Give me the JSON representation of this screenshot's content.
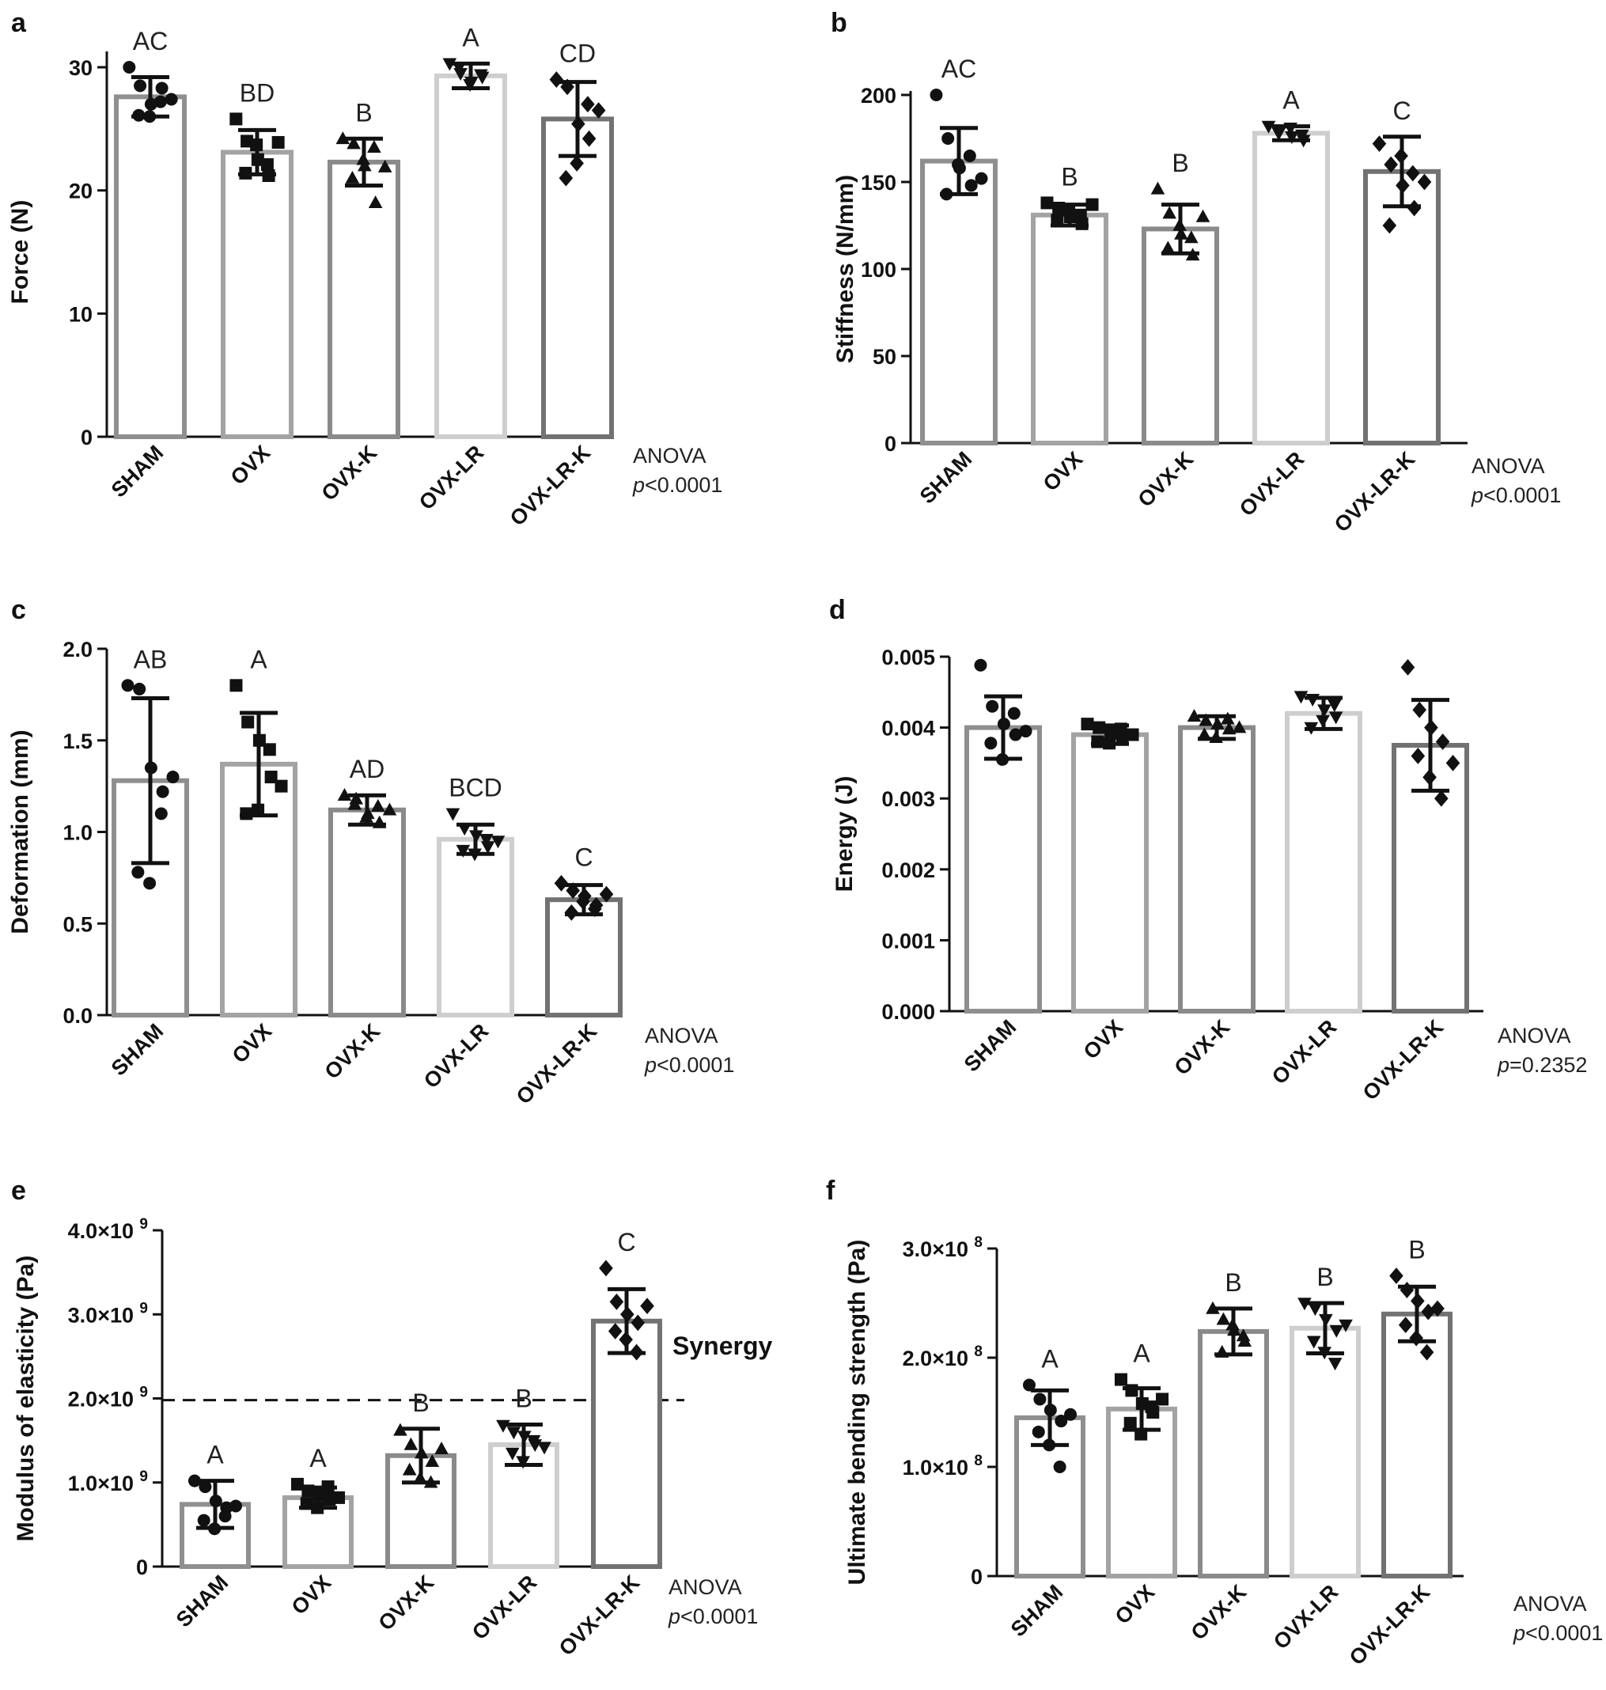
{
  "chart_data": [
    {
      "panel": "a",
      "type": "bar",
      "ylabel": "Force (N)",
      "categories": [
        "SHAM",
        "OVX",
        "OVX-K",
        "OVX-LR",
        "OVX-LR-K"
      ],
      "values": [
        27.6,
        23.1,
        22.3,
        29.3,
        25.8
      ],
      "sd": [
        1.6,
        1.8,
        1.9,
        1.0,
        3.0
      ],
      "points": [
        [
          30.0,
          28.5,
          27.0,
          28.3,
          26.1,
          26.0,
          27.2,
          27.4
        ],
        [
          25.8,
          24.0,
          22.5,
          21.2,
          21.4,
          23.7,
          22.1,
          23.9
        ],
        [
          24.2,
          23.8,
          22.0,
          19.0,
          21.0,
          22.5,
          23.5,
          21.9
        ],
        [
          30.3,
          29.5,
          28.8,
          29.2,
          30.0,
          28.6,
          29.4
        ],
        [
          29.0,
          28.4,
          25.4,
          24.2,
          21.0,
          22.2,
          27.0,
          26.5
        ]
      ],
      "markers": [
        "circle",
        "square",
        "triangle-up",
        "triangle-down",
        "diamond"
      ],
      "letters": [
        "AC",
        "BD",
        "B",
        "A",
        "CD"
      ],
      "yticks": [
        "0",
        "10",
        "20",
        "30"
      ],
      "ytick_values": [
        0,
        10,
        20,
        30
      ],
      "ylim": [
        0,
        32
      ],
      "annotation": [
        "ANOVA",
        "p<0.0001"
      ]
    },
    {
      "panel": "b",
      "type": "bar",
      "ylabel": "Stiffness (N/mm)",
      "categories": [
        "SHAM",
        "OVX",
        "OVX-K",
        "OVX-LR",
        "OVX-LR-K"
      ],
      "values": [
        162,
        131,
        123,
        178,
        156
      ],
      "sd": [
        19,
        6,
        14,
        4,
        20
      ],
      "points": [
        [
          200,
          175,
          158,
          148,
          143,
          160,
          165,
          152
        ],
        [
          138,
          135,
          130,
          126,
          128,
          134,
          131,
          137
        ],
        [
          146,
          132,
          120,
          108,
          112,
          125,
          118,
          130
        ],
        [
          182,
          180,
          176,
          174,
          178,
          181,
          177
        ],
        [
          172,
          160,
          148,
          135,
          125,
          165,
          155,
          150
        ]
      ],
      "markers": [
        "circle",
        "square",
        "triangle-up",
        "triangle-down",
        "diamond"
      ],
      "letters": [
        "AC",
        "B",
        "B",
        "A",
        "C"
      ],
      "yticks": [
        "0",
        "50",
        "100",
        "150",
        "200"
      ],
      "ytick_values": [
        0,
        50,
        100,
        150,
        200
      ],
      "ylim": [
        0,
        200
      ],
      "annotation": [
        "ANOVA",
        "p<0.0001"
      ]
    },
    {
      "panel": "c",
      "type": "bar",
      "ylabel": "Deformation (mm)",
      "categories": [
        "SHAM",
        "OVX",
        "OVX-K",
        "OVX-LR",
        "OVX-LR-K"
      ],
      "values": [
        1.28,
        1.37,
        1.12,
        0.96,
        0.63
      ],
      "sd": [
        0.45,
        0.28,
        0.08,
        0.08,
        0.08
      ],
      "points": [
        [
          1.8,
          1.78,
          1.35,
          1.22,
          0.78,
          0.72,
          1.1,
          1.3
        ],
        [
          1.8,
          1.6,
          1.5,
          1.3,
          1.1,
          1.12,
          1.45,
          1.25
        ],
        [
          1.2,
          1.18,
          1.1,
          1.05,
          1.15,
          1.08,
          1.14,
          1.12
        ],
        [
          1.1,
          1.02,
          0.98,
          0.92,
          0.9,
          0.88,
          0.96,
          0.95
        ],
        [
          0.72,
          0.68,
          0.65,
          0.6,
          0.56,
          0.62,
          0.58,
          0.66
        ]
      ],
      "markers": [
        "circle",
        "square",
        "triangle-up",
        "triangle-down",
        "diamond"
      ],
      "letters": [
        "AB",
        "A",
        "AD",
        "BCD",
        "C"
      ],
      "yticks": [
        "0.0",
        "0.5",
        "1.0",
        "1.5",
        "2.0"
      ],
      "ytick_values": [
        0,
        0.5,
        1.0,
        1.5,
        2.0
      ],
      "ylim": [
        0,
        2.0
      ],
      "annotation": [
        "ANOVA",
        "p<0.0001"
      ]
    },
    {
      "panel": "d",
      "type": "bar",
      "ylabel": "Energy (J)",
      "categories": [
        "SHAM",
        "OVX",
        "OVX-K",
        "OVX-LR",
        "OVX-LR-K"
      ],
      "values": [
        0.004,
        0.0039,
        0.004,
        0.0042,
        0.00375
      ],
      "sd": [
        0.00044,
        0.00013,
        0.00016,
        0.00022,
        0.00064
      ],
      "points": [
        [
          0.00488,
          0.0043,
          0.00405,
          0.0039,
          0.00378,
          0.00355,
          0.0042,
          0.00395
        ],
        [
          0.00405,
          0.004,
          0.00392,
          0.00385,
          0.0038,
          0.00378,
          0.00398,
          0.0039
        ],
        [
          0.00416,
          0.0041,
          0.00405,
          0.00398,
          0.0039,
          0.00386,
          0.00412,
          0.004
        ],
        [
          0.00444,
          0.0044,
          0.00425,
          0.00415,
          0.004,
          0.0041,
          0.00432
        ],
        [
          0.00485,
          0.00425,
          0.004,
          0.0038,
          0.0036,
          0.0033,
          0.003,
          0.0035
        ]
      ],
      "markers": [
        "circle",
        "square",
        "triangle-up",
        "triangle-down",
        "diamond"
      ],
      "letters": [
        "",
        "",
        "",
        "",
        ""
      ],
      "yticks": [
        "0.000",
        "0.001",
        "0.002",
        "0.003",
        "0.004",
        "0.005"
      ],
      "ytick_values": [
        0,
        0.001,
        0.002,
        0.003,
        0.004,
        0.005
      ],
      "ylim": [
        0,
        0.005
      ],
      "annotation": [
        "ANOVA",
        "p=0.2352"
      ]
    },
    {
      "panel": "e",
      "type": "bar",
      "ylabel": "Modulus of elasticity (Pa)",
      "categories": [
        "SHAM",
        "OVX",
        "OVX-K",
        "OVX-LR",
        "OVX-LR-K"
      ],
      "values": [
        0.74,
        0.82,
        1.32,
        1.45,
        2.92
      ],
      "sd": [
        0.28,
        0.12,
        0.32,
        0.24,
        0.38
      ],
      "points": [
        [
          1.02,
          0.95,
          0.78,
          0.7,
          0.55,
          0.45,
          0.6,
          0.72
        ],
        [
          0.98,
          0.9,
          0.85,
          0.8,
          0.75,
          0.7,
          0.95,
          0.82
        ],
        [
          1.62,
          1.45,
          1.35,
          1.25,
          1.15,
          1.05,
          1.0,
          1.4
        ],
        [
          1.68,
          1.6,
          1.55,
          1.45,
          1.35,
          1.25,
          1.5,
          1.42
        ],
        [
          3.55,
          3.15,
          3.0,
          2.9,
          2.8,
          2.7,
          2.55,
          3.1
        ]
      ],
      "markers": [
        "circle",
        "square",
        "triangle-up",
        "triangle-down",
        "diamond"
      ],
      "letters": [
        "A",
        "A",
        "B",
        "B",
        "C"
      ],
      "yticks": [
        "0",
        "1.0×10",
        "2.0×10",
        "3.0×10",
        "4.0×10"
      ],
      "ytick_exp": [
        "",
        "9",
        "9",
        "9",
        "9"
      ],
      "ytick_values": [
        0,
        1,
        2,
        3,
        4
      ],
      "ylim": [
        0,
        4.0
      ],
      "reference_line": 1.98,
      "reference_label": "Synergy",
      "annotation": [
        "ANOVA",
        "p<0.0001"
      ]
    },
    {
      "panel": "f",
      "type": "bar",
      "ylabel": "Ultimate bending strength (Pa)",
      "categories": [
        "SHAM",
        "OVX",
        "OVX-K",
        "OVX-LR",
        "OVX-LR-K"
      ],
      "values": [
        1.45,
        1.53,
        2.24,
        2.27,
        2.4
      ],
      "sd": [
        0.25,
        0.19,
        0.21,
        0.23,
        0.25
      ],
      "points": [
        [
          1.75,
          1.62,
          1.52,
          1.42,
          1.32,
          1.2,
          1.0,
          1.48
        ],
        [
          1.8,
          1.7,
          1.58,
          1.5,
          1.4,
          1.3,
          1.55,
          1.62
        ],
        [
          2.45,
          2.35,
          2.25,
          2.15,
          2.05,
          2.3,
          2.2
        ],
        [
          2.5,
          2.45,
          2.35,
          2.25,
          2.15,
          2.05,
          1.95,
          2.3
        ],
        [
          2.75,
          2.62,
          2.52,
          2.42,
          2.3,
          2.18,
          2.05,
          2.45
        ]
      ],
      "markers": [
        "circle",
        "square",
        "triangle-up",
        "triangle-down",
        "diamond"
      ],
      "letters": [
        "A",
        "A",
        "B",
        "B",
        "B"
      ],
      "yticks": [
        "0",
        "1.0×10",
        "2.0×10",
        "3.0×10"
      ],
      "ytick_exp": [
        "",
        "8",
        "8",
        "8"
      ],
      "ytick_values": [
        0,
        1,
        2,
        3
      ],
      "ylim": [
        0,
        3.0
      ],
      "annotation": [
        "ANOVA",
        "p<0.0001"
      ]
    }
  ],
  "colors": {
    "SHAM": "#8f8f8f",
    "OVX": "#a3a3a3",
    "OVX-K": "#8a8a8a",
    "OVX-LR": "#cecece",
    "OVX-LR-K": "#727272",
    "ink": "#111111"
  }
}
